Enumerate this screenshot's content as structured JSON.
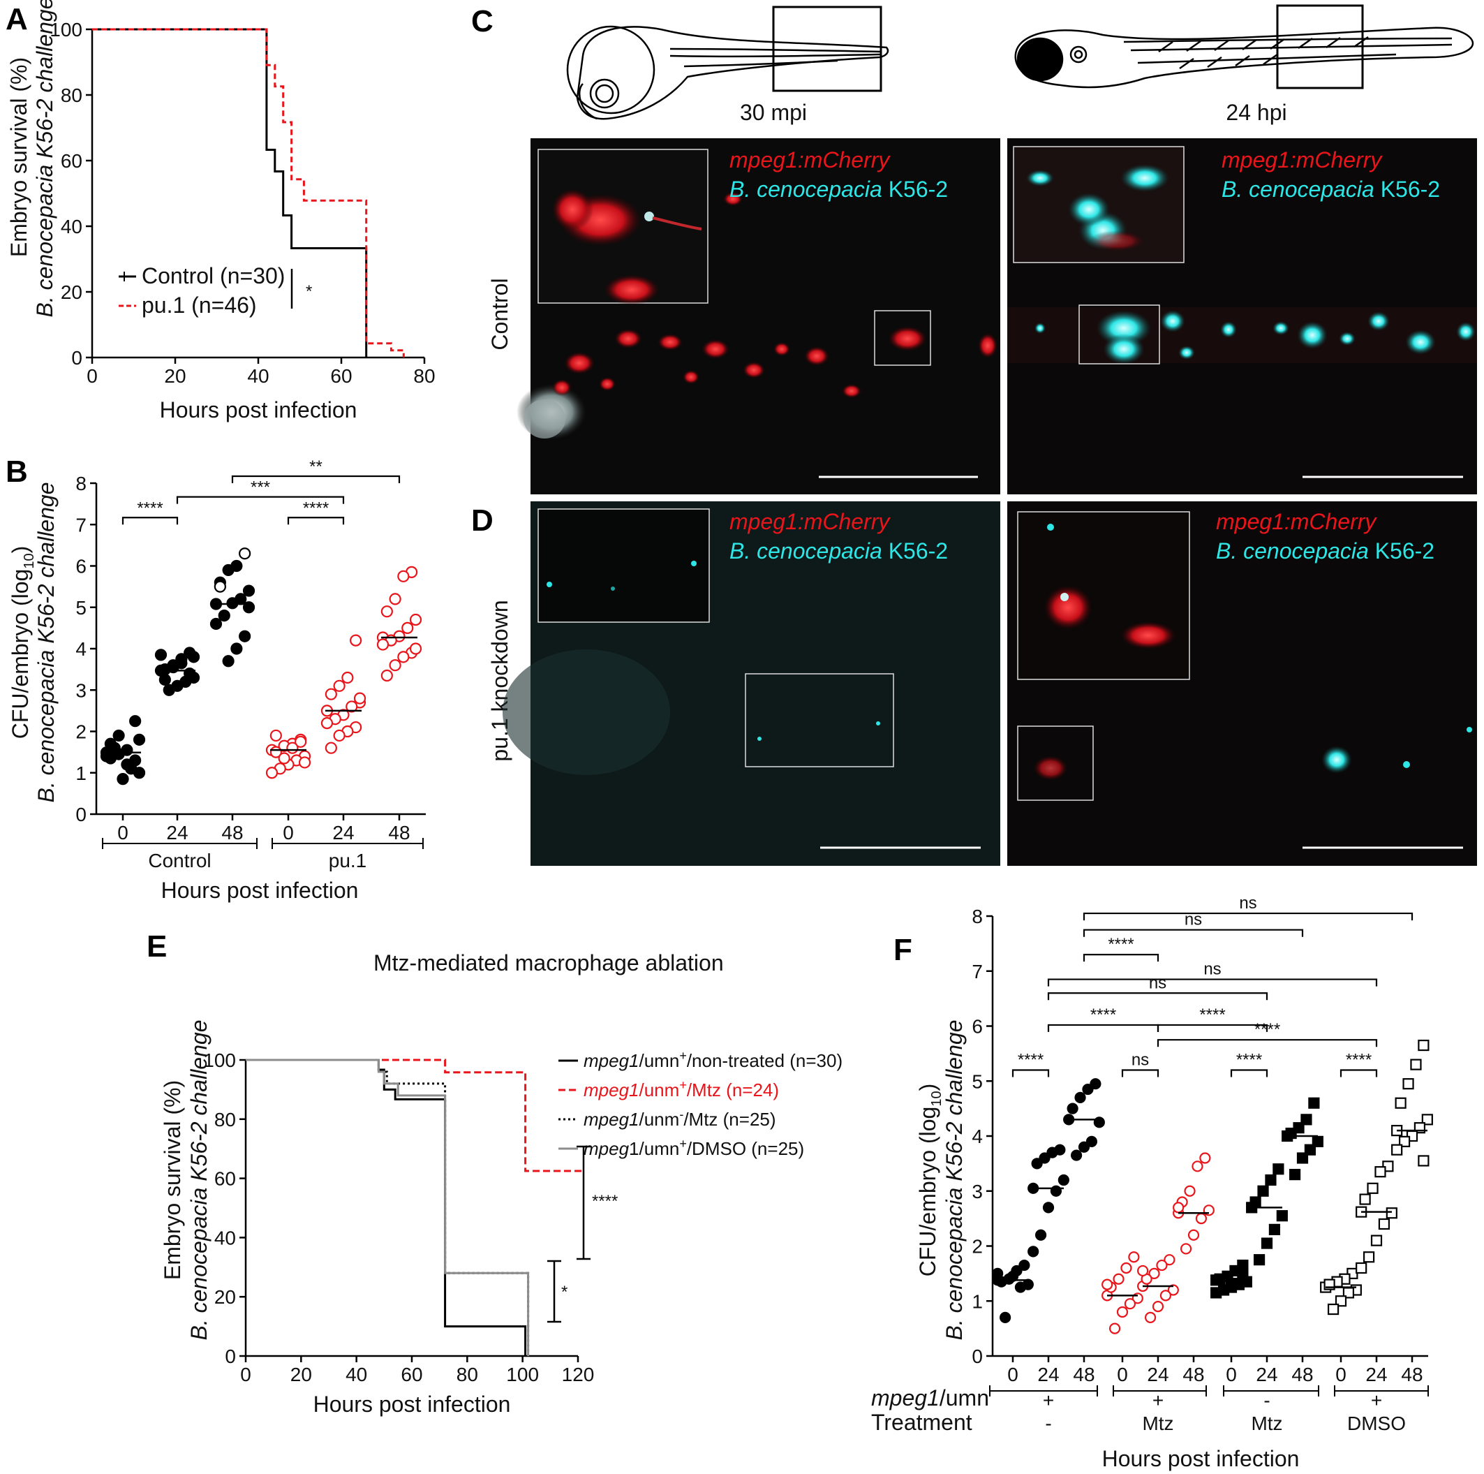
{
  "colors": {
    "black": "#000000",
    "red": "#e8151b",
    "gray": "#8c8c8c",
    "cyan": "#2ee6e6",
    "red_cell": "#e8151b"
  },
  "panelA": {
    "letter": "A",
    "ylabel_line1": "Embryo survival (%)",
    "ylabel_line2": "B. cenocepacia K56-2 challenge",
    "xlabel": "Hours post infection",
    "sig": "*",
    "legend": [
      "Control (n=30)",
      "pu.1 (n=46)"
    ]
  },
  "panelB": {
    "letter": "B",
    "ylabel_line1": "CFU/embryo (log",
    "ylabel_sub": "10",
    "ylabel_close": ")",
    "ylabel_line2": "B. cenocepacia K56-2 challenge",
    "xlabel": "Hours post infection",
    "groups": [
      "Control",
      "pu.1"
    ],
    "sig": [
      "****",
      "***",
      "****",
      "**"
    ]
  },
  "panelC": {
    "letter": "C",
    "row_label": "Control",
    "stage_labels": [
      "30 mpi",
      "24 hpi"
    ],
    "marker1": "mpeg1:mCherry",
    "marker2_italic": "B. cenocepacia",
    "marker2_rest": " K56-2"
  },
  "panelD": {
    "letter": "D",
    "row_label": "pu.1 knockdown"
  },
  "panelE": {
    "letter": "E",
    "title": "Mtz-mediated macrophage ablation",
    "ylabel_line1": "Embryo survival (%)",
    "ylabel_line2": "B. cenocepacia K56-2 challenge",
    "xlabel": "Hours post infection",
    "sig": [
      "****",
      "*"
    ],
    "legend": [
      {
        "italic": "mpeg1",
        "rest": "/umn",
        "sup": "+",
        "tail": "/non-treated (n=30)"
      },
      {
        "italic": "mpeg1",
        "rest": "/unm",
        "sup": "+",
        "tail": "/Mtz (n=24)"
      },
      {
        "italic": "mpeg1",
        "rest": "/unm",
        "sup": "-",
        "tail": "/Mtz (n=25)"
      },
      {
        "italic": "mpeg",
        "rest": "1/umn",
        "sup": "+",
        "tail": "/DMSO (n=25)"
      }
    ]
  },
  "panelF": {
    "letter": "F",
    "ylabel_line1": "CFU/embryo (log",
    "ylabel_sub": "10",
    "ylabel_close": ")",
    "ylabel_line2": "B. cenocepacia K56-2 challenge",
    "xlabel": "Hours post infection",
    "row1_label_italic": "mpeg1",
    "row1_label_rest": "/umn",
    "row2_label": "Treatment",
    "row1_values": [
      "+",
      "+",
      "-",
      "+"
    ],
    "row2_values": [
      "-",
      "Mtz",
      "Mtz",
      "DMSO"
    ],
    "sig": [
      "ns",
      "ns",
      "****",
      "ns",
      "ns",
      "****",
      "****",
      "****",
      "****",
      "ns",
      "****",
      "****"
    ]
  },
  "chart_data": [
    {
      "panel": "A",
      "type": "line",
      "xlabel": "Hours post infection",
      "ylabel": "Embryo survival (%) B. cenocepacia K56-2 challenge",
      "xlim": [
        0,
        80
      ],
      "ylim": [
        0,
        100
      ],
      "x_ticks": [
        0,
        20,
        40,
        60,
        80
      ],
      "y_ticks": [
        0,
        20,
        40,
        60,
        80,
        100
      ],
      "step": true,
      "series": [
        {
          "name": "Control (n=30)",
          "color": "#000000",
          "dash": false,
          "x": [
            0,
            42,
            42,
            44,
            44,
            46,
            46,
            48,
            48,
            66,
            66
          ],
          "y": [
            100,
            100,
            63.3,
            63.3,
            56.7,
            56.7,
            43.3,
            43.3,
            33.3,
            33.3,
            0
          ]
        },
        {
          "name": "pu.1 (n=46)",
          "color": "#e8151b",
          "dash": true,
          "x": [
            0,
            42,
            42,
            44,
            44,
            46,
            46,
            48,
            48,
            51,
            51,
            66,
            66,
            72,
            72,
            75,
            75
          ],
          "y": [
            100,
            100,
            89.1,
            89.1,
            82.6,
            82.6,
            71.7,
            71.7,
            54.3,
            54.3,
            47.8,
            47.8,
            4.3,
            4.3,
            2.2,
            2.2,
            0
          ]
        }
      ],
      "annotations": [
        "*"
      ]
    },
    {
      "panel": "B",
      "type": "scatter",
      "xlabel": "Hours post infection",
      "ylabel": "CFU/embryo (log10) B. cenocepacia K56-2 challenge",
      "ylim": [
        0,
        8
      ],
      "y_ticks": [
        0,
        1,
        2,
        3,
        4,
        5,
        6,
        7,
        8
      ],
      "categories": [
        "0",
        "24",
        "48",
        "0",
        "24",
        "48"
      ],
      "groups": [
        "Control",
        "pu.1"
      ],
      "series": [
        {
          "name": "Control",
          "color": "#000000",
          "filled": true,
          "values": [
            [
              1.49,
              1.3,
              1.2,
              1.45,
              1.7,
              1.8,
              1.1,
              0.85,
              1.6,
              1.4,
              2.25,
              1.55,
              1.9,
              1.35,
              1.0
            ],
            [
              3.47,
              3.9,
              3.75,
              3.6,
              3.5,
              3.3,
              3.2,
              3.1,
              3.0,
              3.85,
              3.4,
              3.65,
              3.55,
              3.25,
              3.8
            ],
            [
              5.08,
              6.3,
              6.0,
              5.9,
              5.6,
              5.4,
              5.2,
              5.1,
              4.8,
              4.6,
              4.3,
              4.0,
              3.7,
              5.5,
              5.0
            ]
          ],
          "means": [
            1.49,
            3.47,
            5.08
          ]
        },
        {
          "name": "pu.1",
          "color": "#e8151b",
          "filled": false,
          "values": [
            [
              1.55,
              1.8,
              1.7,
              1.65,
              1.5,
              1.4,
              1.3,
              1.2,
              1.1,
              1.0,
              1.75,
              1.6,
              1.35,
              1.9,
              1.25
            ],
            [
              2.5,
              4.2,
              3.3,
              3.1,
              2.9,
              2.7,
              2.6,
              2.4,
              2.3,
              2.2,
              2.1,
              2.0,
              1.9,
              1.6,
              2.8
            ],
            [
              4.27,
              5.85,
              5.75,
              5.2,
              4.9,
              4.7,
              4.5,
              4.3,
              4.2,
              4.1,
              3.9,
              3.8,
              3.6,
              3.35,
              4.0
            ]
          ],
          "means": [
            1.55,
            2.5,
            4.27
          ]
        }
      ],
      "comparisons": [
        [
          "0 Control",
          "24 Control",
          "****"
        ],
        [
          "24 Control",
          "24 pu.1",
          "***"
        ],
        [
          "0 pu.1",
          "24 pu.1",
          "****"
        ],
        [
          "48 Control",
          "48 pu.1",
          "**"
        ]
      ]
    },
    {
      "panel": "E",
      "type": "line",
      "title": "Mtz-mediated macrophage ablation",
      "xlabel": "Hours post infection",
      "ylabel": "Embryo survival (%) B. cenocepacia K56-2 challenge",
      "xlim": [
        0,
        120
      ],
      "ylim": [
        0,
        100
      ],
      "x_ticks": [
        0,
        20,
        40,
        60,
        80,
        100,
        120
      ],
      "y_ticks": [
        0,
        20,
        40,
        60,
        80,
        100
      ],
      "step": true,
      "series": [
        {
          "name": "mpeg1/umn+/non-treated (n=30)",
          "color": "#000000",
          "dash": "solid",
          "x": [
            0,
            48,
            48,
            50,
            50,
            54,
            54,
            72,
            72,
            101,
            101
          ],
          "y": [
            100,
            100,
            96.7,
            96.7,
            90,
            90,
            86.7,
            86.7,
            10,
            10,
            0
          ]
        },
        {
          "name": "mpeg1/unm+/Mtz (n=24)",
          "color": "#e8151b",
          "dash": "dash",
          "x": [
            0,
            48,
            48,
            72,
            72,
            101,
            101,
            122
          ],
          "y": [
            100,
            100,
            100,
            100,
            95.8,
            95.8,
            62.5,
            62.5
          ]
        },
        {
          "name": "mpeg1/unm-/Mtz (n=25)",
          "color": "#000000",
          "dash": "dot",
          "x": [
            0,
            48,
            48,
            51,
            51,
            72,
            72,
            102,
            102
          ],
          "y": [
            100,
            100,
            96,
            96,
            92,
            92,
            28,
            28,
            0
          ]
        },
        {
          "name": "mpeg1/umn+/DMSO (n=25)",
          "color": "#8c8c8c",
          "dash": "solid",
          "x": [
            0,
            48,
            48,
            50,
            50,
            55,
            55,
            72,
            72,
            102,
            102
          ],
          "y": [
            100,
            100,
            96,
            96,
            92,
            92,
            88,
            88,
            28,
            28,
            0
          ]
        }
      ],
      "annotations": [
        "****",
        "*"
      ]
    },
    {
      "panel": "F",
      "type": "scatter",
      "xlabel": "Hours post infection",
      "ylabel": "CFU/embryo (log10) B. cenocepacia K56-2 challenge",
      "ylim": [
        0,
        8
      ],
      "y_ticks": [
        0,
        1,
        2,
        3,
        4,
        5,
        6,
        7,
        8
      ],
      "categories": [
        "0",
        "24",
        "48",
        "0",
        "24",
        "48",
        "0",
        "24",
        "48",
        "0",
        "24",
        "48"
      ],
      "groups": [
        {
          "mpeg1_umn": "+",
          "treatment": "-"
        },
        {
          "mpeg1_umn": "+",
          "treatment": "Mtz"
        },
        {
          "mpeg1_umn": "-",
          "treatment": "Mtz"
        },
        {
          "mpeg1_umn": "+",
          "treatment": "DMSO"
        }
      ],
      "series": [
        {
          "name": "umn+ / -",
          "marker": "circle",
          "filled": true,
          "color": "#000000",
          "values": [
            [
              1.38,
              1.65,
              1.55,
              1.4,
              1.35,
              1.3,
              1.25,
              1.45,
              0.7,
              1.5
            ],
            [
              3.05,
              3.75,
              3.7,
              3.6,
              3.5,
              3.2,
              3.0,
              2.7,
              2.2,
              1.9
            ],
            [
              4.3,
              4.95,
              4.85,
              4.7,
              4.5,
              4.25,
              3.9,
              3.8,
              3.65
            ]
          ],
          "means": [
            1.38,
            3.05,
            4.3
          ]
        },
        {
          "name": "umn+ / Mtz",
          "marker": "circle",
          "filled": false,
          "color": "#e8151b",
          "values": [
            [
              1.1,
              1.8,
              1.6,
              1.4,
              1.25,
              1.05,
              0.95,
              0.8,
              0.5,
              1.3
            ],
            [
              1.27,
              1.75,
              1.65,
              1.5,
              1.4,
              1.2,
              1.1,
              0.9,
              0.7,
              1.55
            ],
            [
              2.6,
              3.6,
              3.45,
              3.0,
              2.8,
              2.65,
              2.5,
              2.2,
              1.95,
              2.7
            ]
          ],
          "means": [
            1.1,
            1.27,
            2.6
          ]
        },
        {
          "name": "umn- / Mtz",
          "marker": "square",
          "filled": true,
          "color": "#000000",
          "values": [
            [
              1.38,
              1.65,
              1.55,
              1.45,
              1.4,
              1.35,
              1.3,
              1.25,
              1.2,
              1.15,
              1.5,
              1.32
            ],
            [
              2.7,
              3.4,
              3.2,
              3.0,
              2.8,
              2.55,
              2.3,
              2.05,
              1.75
            ],
            [
              4.0,
              4.6,
              4.3,
              4.15,
              4.05,
              3.9,
              3.75,
              3.6,
              3.3
            ]
          ],
          "means": [
            1.38,
            2.7,
            4.0
          ]
        },
        {
          "name": "umn+ / DMSO",
          "marker": "square",
          "filled": false,
          "color": "#000000",
          "values": [
            [
              1.25,
              1.5,
              1.4,
              1.35,
              1.3,
              1.2,
              1.15,
              1.0,
              0.85
            ],
            [
              2.62,
              3.45,
              3.35,
              3.05,
              2.85,
              2.6,
              2.4,
              2.1,
              1.8,
              1.6
            ],
            [
              4.1,
              5.65,
              5.3,
              4.95,
              4.6,
              4.3,
              4.15,
              4.0,
              3.9,
              3.75,
              3.55
            ]
          ],
          "means": [
            1.25,
            2.62,
            4.1
          ]
        }
      ]
    }
  ]
}
